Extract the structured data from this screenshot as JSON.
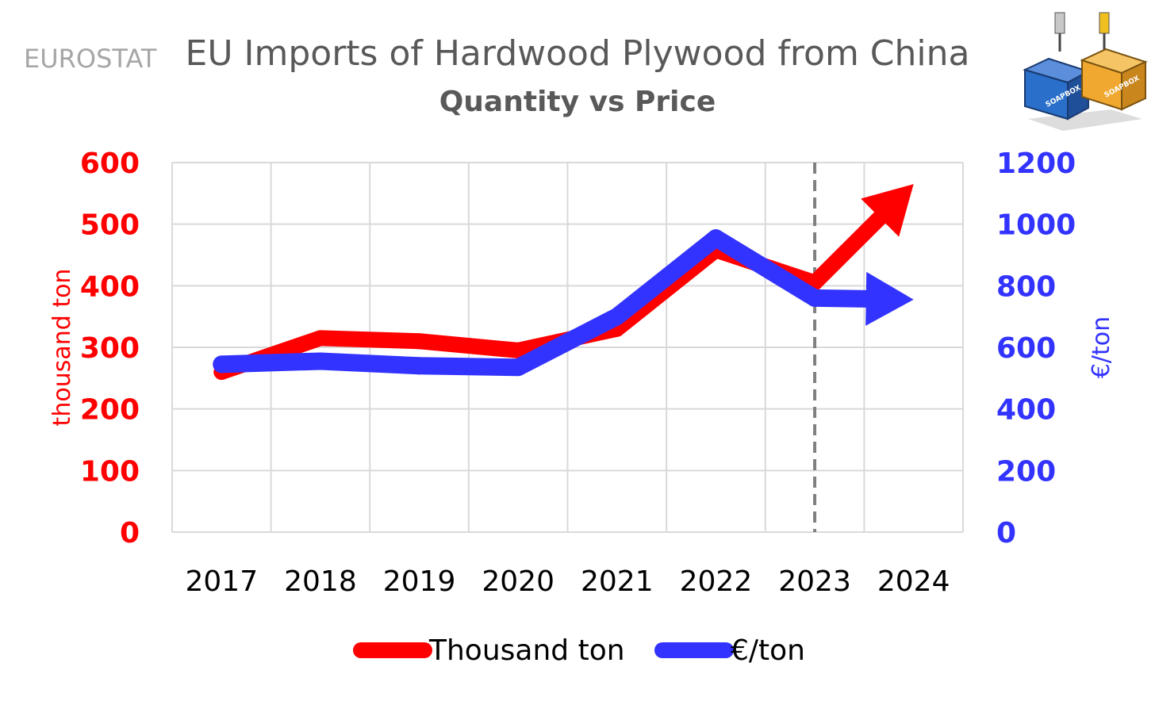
{
  "source_label": "EUROSTAT",
  "chart_data": {
    "type": "line",
    "title": "EU Imports of Hardwood Plywood from China",
    "subtitle": "Quantity vs Price",
    "categories": [
      "2017",
      "2018",
      "2019",
      "2020",
      "2021",
      "2022",
      "2023",
      "2024"
    ],
    "y_left": {
      "label": "thousand ton",
      "range": [
        0,
        600
      ],
      "ticks": [
        "0",
        "100",
        "200",
        "300",
        "400",
        "500",
        "600"
      ]
    },
    "y_right": {
      "label": "€/ton",
      "range": [
        0,
        1200
      ],
      "ticks": [
        "0",
        "200",
        "400",
        "600",
        "800",
        "1000",
        "1200"
      ]
    },
    "series": [
      {
        "name": "Thousand ton",
        "axis": "left",
        "color": "#ff0000",
        "values": [
          260,
          315,
          310,
          295,
          330,
          458,
          405,
          null
        ],
        "projection": {
          "from": "2023",
          "to": "2024",
          "value": 565,
          "trend": "up"
        }
      },
      {
        "name": "€/ton",
        "axis": "right",
        "color": "#3333ff",
        "values": [
          545,
          555,
          540,
          535,
          700,
          955,
          760,
          null
        ],
        "projection": {
          "from": "2023",
          "to": "2024",
          "value": 755,
          "trend": "flat"
        }
      }
    ],
    "marker": {
      "at": "2023",
      "style": "dashed vertical line",
      "color": "#808080"
    },
    "grid": true,
    "legend": "bottom-center",
    "axis_colors": {
      "left": "#ff0000",
      "right": "#3333ff",
      "ticks": "#000000",
      "grid": "#d9d9d9"
    }
  },
  "logo": {
    "text": "SOAPBOX",
    "colors": [
      "#2a6fc9",
      "#f0a830"
    ]
  }
}
